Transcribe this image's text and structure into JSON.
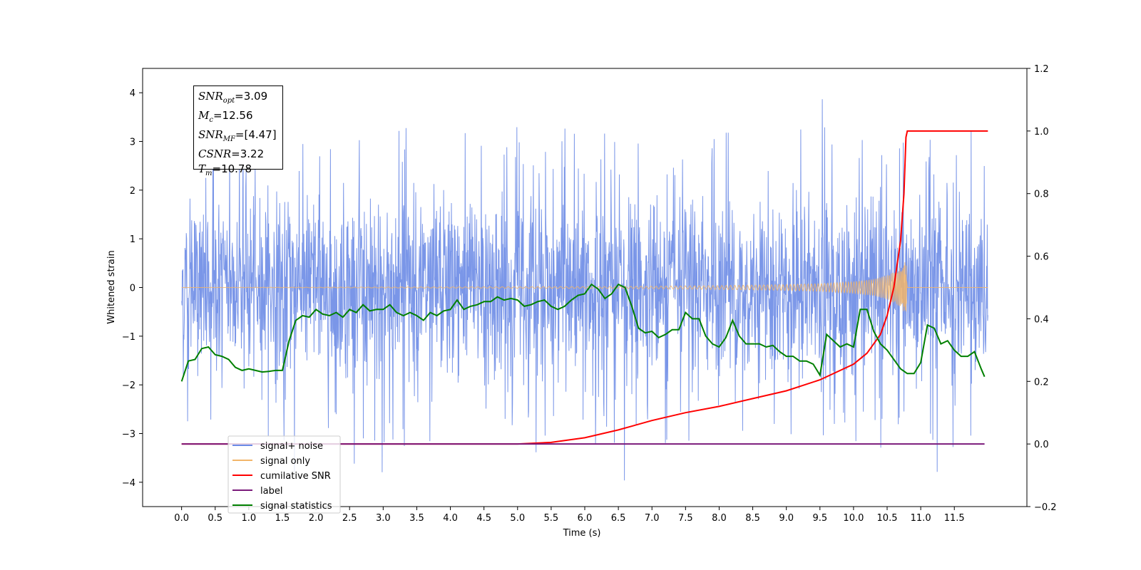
{
  "chart_data": {
    "type": "line",
    "xlabel": "Time (s)",
    "ylabel": "Whitened strain",
    "xlim": [
      -0.58,
      12.58
    ],
    "ylim_left": [
      -4.5,
      4.5
    ],
    "ylim_right": [
      -0.2,
      1.2
    ],
    "x_ticks": [
      "0.0",
      "0.5",
      "1.0",
      "1.5",
      "2.0",
      "2.5",
      "3.0",
      "3.5",
      "4.0",
      "4.5",
      "5.0",
      "5.5",
      "6.0",
      "6.5",
      "7.0",
      "7.5",
      "8.0",
      "8.5",
      "9.0",
      "9.5",
      "10.0",
      "10.5",
      "11.0",
      "11.5"
    ],
    "y_ticks_left": [
      "4",
      "3",
      "2",
      "1",
      "0",
      "−1",
      "−2",
      "−3",
      "−4"
    ],
    "y_ticks_right": [
      "1.2",
      "1.0",
      "0.8",
      "0.6",
      "0.4",
      "0.2",
      "0.0",
      "−0.2"
    ],
    "grid": false,
    "legend_placement": "lower-left",
    "series": [
      {
        "name": "signal+ noise",
        "axis": "left",
        "color": "#6b8be6",
        "x_range": [
          0.0,
          12.0
        ],
        "description_values": {
          "mean": 0.0,
          "typical_max": 3.2,
          "typical_min": -3.0,
          "peak_max": 4.05,
          "peak_min": -4.1
        }
      },
      {
        "name": "signal only",
        "axis": "left",
        "color": "#f2b56a",
        "x": [
          0.0,
          6.5,
          8.0,
          9.0,
          9.5,
          10.0,
          10.3,
          10.5,
          10.65,
          10.75,
          10.78,
          10.8,
          12.0
        ],
        "envelope": [
          0.0,
          0.02,
          0.04,
          0.06,
          0.08,
          0.12,
          0.17,
          0.25,
          0.35,
          0.5,
          0.6,
          0.0,
          0.0
        ]
      },
      {
        "name": "cumilative SNR",
        "axis": "right",
        "color": "#ff0000",
        "x": [
          0.0,
          5.0,
          5.5,
          6.0,
          6.5,
          7.0,
          7.5,
          8.0,
          8.5,
          9.0,
          9.5,
          10.0,
          10.2,
          10.4,
          10.5,
          10.6,
          10.7,
          10.75,
          10.78,
          10.8,
          12.0
        ],
        "values": [
          0.0,
          0.0,
          0.005,
          0.02,
          0.045,
          0.075,
          0.1,
          0.12,
          0.145,
          0.17,
          0.205,
          0.255,
          0.29,
          0.35,
          0.41,
          0.5,
          0.65,
          0.8,
          0.98,
          1.0,
          1.0
        ]
      },
      {
        "name": "label",
        "axis": "right",
        "color": "#7b1a7b",
        "x": [
          0.0,
          11.95
        ],
        "values": [
          0.0,
          0.0
        ]
      },
      {
        "name": "signal statistics",
        "axis": "right",
        "color": "#008000",
        "x": [
          0.0,
          0.1,
          0.2,
          0.3,
          0.4,
          0.5,
          0.6,
          0.7,
          0.8,
          0.9,
          1.0,
          1.1,
          1.2,
          1.3,
          1.4,
          1.5,
          1.6,
          1.7,
          1.8,
          1.9,
          2.0,
          2.1,
          2.2,
          2.3,
          2.4,
          2.5,
          2.6,
          2.7,
          2.8,
          2.9,
          3.0,
          3.1,
          3.2,
          3.3,
          3.4,
          3.5,
          3.6,
          3.7,
          3.8,
          3.9,
          4.0,
          4.1,
          4.2,
          4.3,
          4.4,
          4.5,
          4.6,
          4.7,
          4.8,
          4.9,
          5.0,
          5.1,
          5.2,
          5.3,
          5.4,
          5.5,
          5.6,
          5.7,
          5.8,
          5.9,
          6.0,
          6.1,
          6.2,
          6.3,
          6.4,
          6.5,
          6.6,
          6.7,
          6.8,
          6.9,
          7.0,
          7.1,
          7.2,
          7.3,
          7.4,
          7.5,
          7.6,
          7.7,
          7.8,
          7.9,
          8.0,
          8.1,
          8.2,
          8.3,
          8.4,
          8.5,
          8.6,
          8.7,
          8.8,
          8.9,
          9.0,
          9.1,
          9.2,
          9.3,
          9.4,
          9.5,
          9.6,
          9.7,
          9.8,
          9.9,
          10.0,
          10.1,
          10.2,
          10.3,
          10.4,
          10.5,
          10.6,
          10.7,
          10.8,
          10.9,
          11.0,
          11.1,
          11.2,
          11.3,
          11.4,
          11.5,
          11.6,
          11.7,
          11.8,
          11.9,
          11.95
        ],
        "values": [
          0.2,
          0.265,
          0.27,
          0.305,
          0.31,
          0.285,
          0.28,
          0.27,
          0.245,
          0.235,
          0.24,
          0.235,
          0.23,
          0.232,
          0.235,
          0.235,
          0.33,
          0.395,
          0.41,
          0.405,
          0.43,
          0.415,
          0.41,
          0.42,
          0.405,
          0.43,
          0.42,
          0.445,
          0.425,
          0.43,
          0.43,
          0.445,
          0.42,
          0.41,
          0.42,
          0.41,
          0.395,
          0.42,
          0.41,
          0.425,
          0.43,
          0.46,
          0.43,
          0.44,
          0.445,
          0.455,
          0.455,
          0.47,
          0.46,
          0.465,
          0.46,
          0.44,
          0.445,
          0.455,
          0.46,
          0.44,
          0.43,
          0.44,
          0.46,
          0.475,
          0.48,
          0.51,
          0.495,
          0.465,
          0.48,
          0.51,
          0.5,
          0.44,
          0.37,
          0.355,
          0.36,
          0.34,
          0.35,
          0.365,
          0.365,
          0.42,
          0.4,
          0.4,
          0.345,
          0.32,
          0.31,
          0.34,
          0.395,
          0.345,
          0.32,
          0.32,
          0.32,
          0.31,
          0.315,
          0.295,
          0.28,
          0.28,
          0.265,
          0.265,
          0.255,
          0.22,
          0.35,
          0.33,
          0.31,
          0.32,
          0.31,
          0.43,
          0.43,
          0.36,
          0.32,
          0.3,
          0.27,
          0.24,
          0.225,
          0.225,
          0.26,
          0.38,
          0.37,
          0.32,
          0.33,
          0.3,
          0.28,
          0.28,
          0.295,
          0.24,
          0.215
        ]
      }
    ],
    "annotation": {
      "snr_opt": "3.09",
      "mc": "12.56",
      "snr_mf": "[4.47]",
      "csnr": "3.22",
      "tm": "10.78"
    }
  },
  "legend": {
    "items": [
      {
        "label": "signal+ noise",
        "color": "#6b8be6"
      },
      {
        "label": "signal only",
        "color": "#f2b56a"
      },
      {
        "label": "cumilative SNR",
        "color": "#ff0000"
      },
      {
        "label": "label",
        "color": "#7b1a7b"
      },
      {
        "label": "signal statistics",
        "color": "#008000"
      }
    ]
  }
}
